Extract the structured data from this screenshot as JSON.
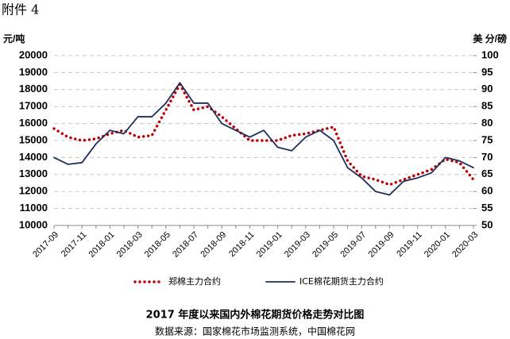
{
  "attachment_label": "附件 4",
  "chart_data": {
    "type": "line",
    "title": "2017 年度以来国内外棉花期货价格走势对比图",
    "source": "数据来源：国家棉花市场监测系统，中国棉花网",
    "ylabel": "元/吨",
    "y2label": "美 分/磅",
    "categories": [
      "2017-09",
      null,
      "2017-11",
      null,
      "2018-01",
      null,
      "2018-03",
      null,
      "2018-05",
      null,
      "2018-07",
      null,
      "2018-09",
      null,
      "2018-11",
      null,
      "2019-01",
      null,
      "2019-03",
      null,
      "2019-05",
      null,
      "2019-07",
      null,
      "2019-09",
      null,
      "2019-11",
      null,
      "2020-01",
      null,
      "2020-03"
    ],
    "series": [
      {
        "name": "郑棉主力合约",
        "color": "#c00000",
        "style": "dotted",
        "values": [
          15700,
          15200,
          15000,
          15100,
          15400,
          15600,
          15200,
          15300,
          16800,
          18300,
          16800,
          17000,
          16400,
          15700,
          15000,
          15000,
          15000,
          15300,
          15400,
          15600,
          15800,
          13800,
          12900,
          12700,
          12400,
          12700,
          13000,
          13300,
          13900,
          13700,
          12700
        ]
      },
      {
        "name": "ICE棉花期货主力合约",
        "color": "#1f2e5e",
        "style": "solid",
        "axis": "y2",
        "values": [
          70,
          68,
          68.5,
          74,
          78,
          77,
          82,
          82,
          86,
          92,
          86,
          86,
          80,
          78,
          76,
          78,
          73,
          72,
          76,
          78,
          75,
          67,
          64,
          60,
          59,
          63,
          64,
          65.5,
          70,
          69,
          67
        ]
      }
    ],
    "ylim": [
      10000,
      20000
    ],
    "yticks": [
      10000,
      11000,
      12000,
      13000,
      14000,
      15000,
      16000,
      17000,
      18000,
      19000,
      20000
    ],
    "y2lim": [
      50,
      100
    ],
    "y2ticks": [
      50,
      55,
      60,
      65,
      70,
      75,
      80,
      85,
      90,
      95,
      100
    ],
    "grid": true
  }
}
